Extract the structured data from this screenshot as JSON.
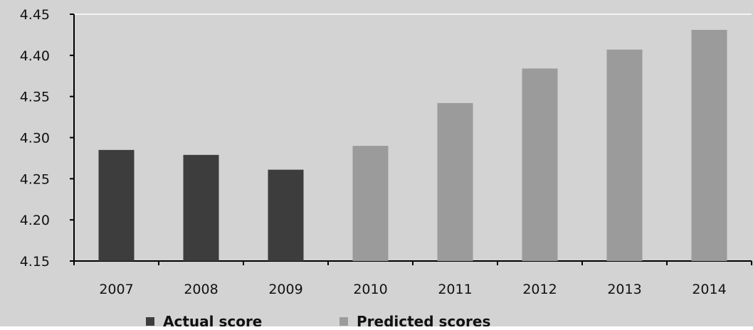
{
  "chart_data": {
    "type": "bar",
    "title": "",
    "xlabel": "",
    "ylabel": "",
    "categories": [
      "2007",
      "2008",
      "2009",
      "2010",
      "2011",
      "2012",
      "2013",
      "2014"
    ],
    "values": [
      4.285,
      4.279,
      4.261,
      4.29,
      4.342,
      4.384,
      4.407,
      4.431
    ],
    "series_membership": [
      "Actual score",
      "Actual score",
      "Actual score",
      "Predicted scores",
      "Predicted scores",
      "Predicted scores",
      "Predicted scores",
      "Predicted scores"
    ],
    "legend": [
      {
        "name": "Actual score",
        "color": "#3d3d3d"
      },
      {
        "name": "Predicted scores",
        "color": "#9b9b9b"
      }
    ],
    "ylim": [
      4.15,
      4.45
    ],
    "yticks": [
      "4.15",
      "4.20",
      "4.25",
      "4.30",
      "4.35",
      "4.40",
      "4.45"
    ],
    "grid": false,
    "legend_position": "bottom"
  },
  "colors": {
    "background": "#d3d3d3",
    "plot_border": "#7a7a7a",
    "axis": "#000000"
  }
}
